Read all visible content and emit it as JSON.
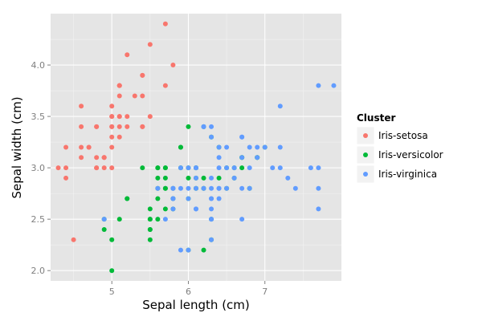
{
  "chart_data": {
    "type": "scatter",
    "xlabel": "Sepal length (cm)",
    "ylabel": "Sepal width (cm)",
    "xlim": [
      4.2,
      8.0
    ],
    "ylim": [
      1.9,
      4.5
    ],
    "x_ticks": [
      5,
      6,
      7
    ],
    "y_ticks": [
      "2.0",
      "2.5",
      "3.0",
      "3.5",
      "4.0"
    ],
    "grid": true,
    "legend": {
      "title": "Cluster",
      "placement": "right"
    },
    "series": [
      {
        "name": "Iris-setosa",
        "color": "#F8766D",
        "points": [
          [
            5.1,
            3.5
          ],
          [
            4.9,
            3.0
          ],
          [
            4.7,
            3.2
          ],
          [
            4.6,
            3.1
          ],
          [
            5.0,
            3.6
          ],
          [
            5.4,
            3.9
          ],
          [
            4.6,
            3.4
          ],
          [
            5.0,
            3.4
          ],
          [
            4.4,
            2.9
          ],
          [
            4.9,
            3.1
          ],
          [
            5.4,
            3.7
          ],
          [
            4.8,
            3.4
          ],
          [
            4.8,
            3.0
          ],
          [
            4.3,
            3.0
          ],
          [
            5.8,
            4.0
          ],
          [
            5.7,
            4.4
          ],
          [
            5.4,
            3.9
          ],
          [
            5.1,
            3.5
          ],
          [
            5.7,
            3.8
          ],
          [
            5.1,
            3.8
          ],
          [
            5.4,
            3.4
          ],
          [
            5.1,
            3.7
          ],
          [
            4.6,
            3.6
          ],
          [
            5.1,
            3.3
          ],
          [
            4.8,
            3.4
          ],
          [
            5.0,
            3.0
          ],
          [
            5.0,
            3.4
          ],
          [
            5.2,
            3.5
          ],
          [
            5.2,
            3.4
          ],
          [
            4.7,
            3.2
          ],
          [
            4.8,
            3.1
          ],
          [
            5.4,
            3.4
          ],
          [
            5.2,
            4.1
          ],
          [
            5.5,
            4.2
          ],
          [
            4.9,
            3.1
          ],
          [
            5.0,
            3.2
          ],
          [
            5.5,
            3.5
          ],
          [
            4.9,
            3.1
          ],
          [
            4.4,
            3.0
          ],
          [
            5.1,
            3.4
          ],
          [
            5.0,
            3.5
          ],
          [
            4.5,
            2.3
          ],
          [
            4.4,
            3.2
          ],
          [
            5.0,
            3.5
          ],
          [
            5.1,
            3.8
          ],
          [
            4.8,
            3.0
          ],
          [
            5.1,
            3.8
          ],
          [
            4.6,
            3.2
          ],
          [
            5.3,
            3.7
          ],
          [
            5.0,
            3.3
          ]
        ]
      },
      {
        "name": "Iris-versicolor",
        "color": "#00BA38",
        "points": [
          [
            5.5,
            2.3
          ],
          [
            5.7,
            2.8
          ],
          [
            4.9,
            2.4
          ],
          [
            5.2,
            2.7
          ],
          [
            5.0,
            2.0
          ],
          [
            5.9,
            3.0
          ],
          [
            6.0,
            2.2
          ],
          [
            5.6,
            2.9
          ],
          [
            5.6,
            3.0
          ],
          [
            5.8,
            2.7
          ],
          [
            6.2,
            2.2
          ],
          [
            5.6,
            2.5
          ],
          [
            5.9,
            3.2
          ],
          [
            6.1,
            2.8
          ],
          [
            6.4,
            2.9
          ],
          [
            6.6,
            3.0
          ],
          [
            6.8,
            2.8
          ],
          [
            6.0,
            2.9
          ],
          [
            5.7,
            2.6
          ],
          [
            5.5,
            2.4
          ],
          [
            5.5,
            2.4
          ],
          [
            5.8,
            2.7
          ],
          [
            6.0,
            2.7
          ],
          [
            5.4,
            3.0
          ],
          [
            6.0,
            3.4
          ],
          [
            6.3,
            2.3
          ],
          [
            5.6,
            3.0
          ],
          [
            5.5,
            2.5
          ],
          [
            5.5,
            2.6
          ],
          [
            6.1,
            3.0
          ],
          [
            5.8,
            2.6
          ],
          [
            5.0,
            2.3
          ],
          [
            5.6,
            2.7
          ],
          [
            5.7,
            3.0
          ],
          [
            5.7,
            2.9
          ],
          [
            6.2,
            2.9
          ],
          [
            5.1,
            2.5
          ],
          [
            5.7,
            2.8
          ],
          [
            5.8,
            2.8
          ],
          [
            4.9,
            2.5
          ],
          [
            6.5,
            2.8
          ],
          [
            6.3,
            2.5
          ],
          [
            6.6,
            2.9
          ],
          [
            5.2,
            2.7
          ],
          [
            5.9,
            3.2
          ],
          [
            6.4,
            3.2
          ],
          [
            7.0,
            3.2
          ],
          [
            6.9,
            3.1
          ],
          [
            6.7,
            3.1
          ],
          [
            6.1,
            2.9
          ],
          [
            6.0,
            3.0
          ],
          [
            5.7,
            3.0
          ],
          [
            6.3,
            3.3
          ],
          [
            6.1,
            3.0
          ],
          [
            6.7,
            3.0
          ],
          [
            5.5,
            2.5
          ],
          [
            5.6,
            2.8
          ],
          [
            6.2,
            2.8
          ],
          [
            6.7,
            3.1
          ],
          [
            6.5,
            3.0
          ],
          [
            6.9,
            3.1
          ],
          [
            6.2,
            3.4
          ]
        ]
      },
      {
        "name": "Iris-virginica",
        "color": "#619CFF",
        "points": [
          [
            6.3,
            3.3
          ],
          [
            5.8,
            2.7
          ],
          [
            7.1,
            3.0
          ],
          [
            6.3,
            2.9
          ],
          [
            6.5,
            3.0
          ],
          [
            7.6,
            3.0
          ],
          [
            7.3,
            2.9
          ],
          [
            6.7,
            2.5
          ],
          [
            7.2,
            3.6
          ],
          [
            6.4,
            2.7
          ],
          [
            6.8,
            3.0
          ],
          [
            5.8,
            2.8
          ],
          [
            6.4,
            3.2
          ],
          [
            7.7,
            3.8
          ],
          [
            7.7,
            2.6
          ],
          [
            6.9,
            3.2
          ],
          [
            7.7,
            2.8
          ],
          [
            6.3,
            2.7
          ],
          [
            6.7,
            3.3
          ],
          [
            7.2,
            3.2
          ],
          [
            6.1,
            3.0
          ],
          [
            6.4,
            2.8
          ],
          [
            7.2,
            3.0
          ],
          [
            7.4,
            2.8
          ],
          [
            7.9,
            3.8
          ],
          [
            6.4,
            2.8
          ],
          [
            6.3,
            2.8
          ],
          [
            6.1,
            2.6
          ],
          [
            7.7,
            3.0
          ],
          [
            6.3,
            3.4
          ],
          [
            6.4,
            3.1
          ],
          [
            6.0,
            3.0
          ],
          [
            6.9,
            3.1
          ],
          [
            6.7,
            3.1
          ],
          [
            6.8,
            3.2
          ],
          [
            6.7,
            3.3
          ],
          [
            6.3,
            2.5
          ],
          [
            6.2,
            3.4
          ],
          [
            5.9,
            3.0
          ],
          [
            6.3,
            2.5
          ],
          [
            6.5,
            3.2
          ],
          [
            6.2,
            3.4
          ],
          [
            5.8,
            2.8
          ],
          [
            5.9,
            2.2
          ],
          [
            6.0,
            2.2
          ],
          [
            6.1,
            2.8
          ],
          [
            6.1,
            2.9
          ],
          [
            6.2,
            2.8
          ],
          [
            6.3,
            2.3
          ],
          [
            4.9,
            2.5
          ],
          [
            5.7,
            2.5
          ],
          [
            5.8,
            2.7
          ],
          [
            5.6,
            2.8
          ],
          [
            6.0,
            2.8
          ],
          [
            5.8,
            2.6
          ],
          [
            6.3,
            2.7
          ],
          [
            7.0,
            3.2
          ],
          [
            6.6,
            2.9
          ],
          [
            6.1,
            3.0
          ],
          [
            6.6,
            3.0
          ],
          [
            5.9,
            2.8
          ],
          [
            6.4,
            3.0
          ],
          [
            6.0,
            2.7
          ],
          [
            6.5,
            2.8
          ],
          [
            6.1,
            2.6
          ],
          [
            6.3,
            2.6
          ],
          [
            6.7,
            2.8
          ],
          [
            6.8,
            2.8
          ]
        ]
      }
    ]
  }
}
